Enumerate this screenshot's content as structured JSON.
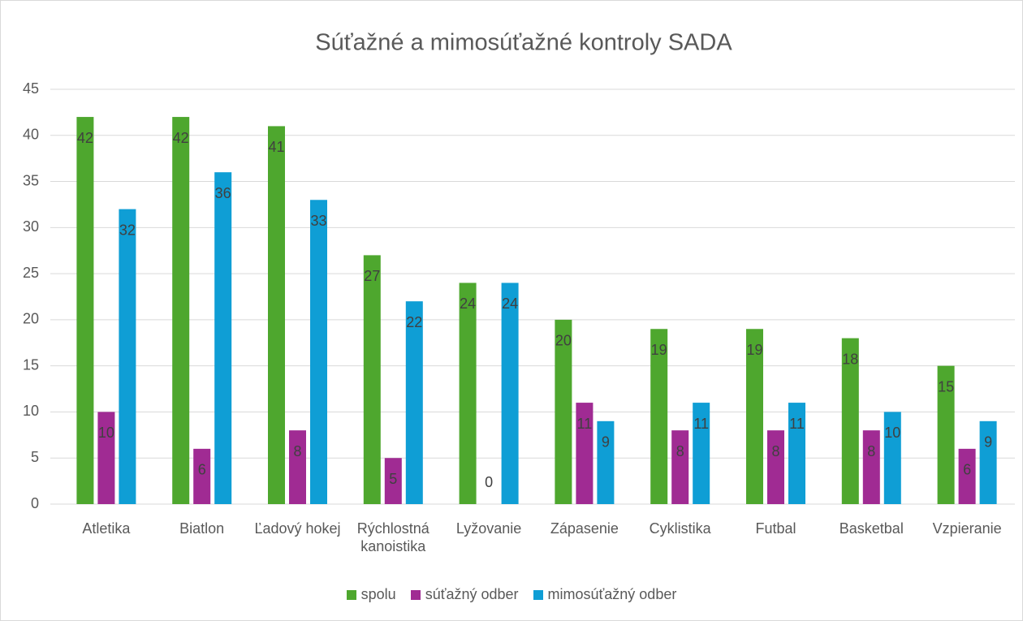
{
  "chart_data": {
    "type": "bar",
    "title": "Súťažné a mimosúťažné kontroly SADA",
    "categories": [
      "Atletika",
      "Biatlon",
      "Ľadový hokej",
      "Rýchlostná kanoistika",
      "Lyžovanie",
      "Zápasenie",
      "Cyklistika",
      "Futbal",
      "Basketbal",
      "Vzpieranie"
    ],
    "series": [
      {
        "name": "spolu",
        "color": "#4ea72e",
        "values": [
          42,
          42,
          41,
          27,
          24,
          20,
          19,
          19,
          18,
          15
        ]
      },
      {
        "name": "súťažný odber",
        "color": "#a02b93",
        "values": [
          10,
          6,
          8,
          5,
          0,
          11,
          8,
          8,
          8,
          6
        ]
      },
      {
        "name": "mimosúťažný odber",
        "color": "#0f9ed5",
        "values": [
          32,
          36,
          33,
          22,
          24,
          9,
          11,
          11,
          10,
          9
        ]
      }
    ],
    "ylim": [
      0,
      45
    ],
    "yticks": [
      0,
      5,
      10,
      15,
      20,
      25,
      30,
      35,
      40,
      45
    ],
    "grid": true,
    "legend": "bottom"
  }
}
